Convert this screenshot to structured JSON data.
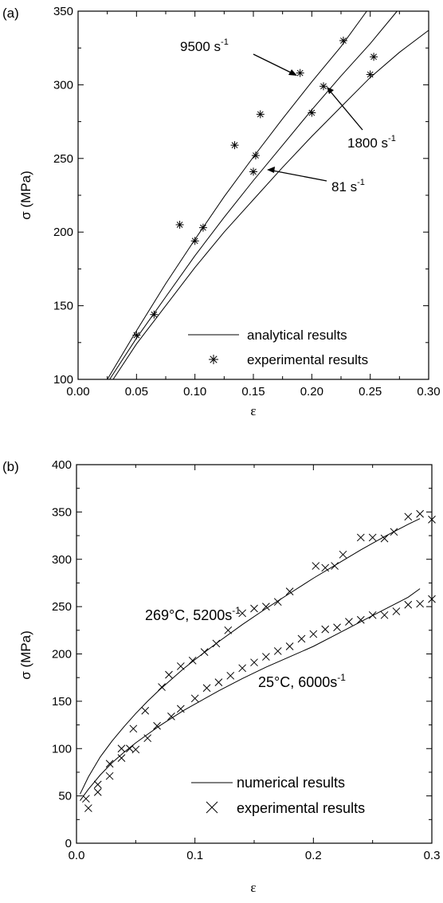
{
  "chart_data": [
    {
      "type": "line",
      "panel_label": "(a)",
      "xlabel": "ε",
      "ylabel": "σ (MPa)",
      "xlim": [
        0.0,
        0.3
      ],
      "ylim": [
        100,
        350
      ],
      "xticks": [
        "0.00",
        "0.05",
        "0.10",
        "0.15",
        "0.20",
        "0.25",
        "0.30"
      ],
      "yticks": [
        "100",
        "150",
        "200",
        "250",
        "300",
        "350"
      ],
      "grid": false,
      "legend_position": "bottom-right",
      "legend": [
        {
          "label": "analytical results",
          "marker": "line"
        },
        {
          "label": "experimental results",
          "marker": "asterisk"
        }
      ],
      "series": [
        {
          "name": "9500 s-1",
          "curve": [
            [
              0.025,
              100
            ],
            [
              0.05,
              133
            ],
            [
              0.075,
              165
            ],
            [
              0.1,
              195
            ],
            [
              0.125,
              224
            ],
            [
              0.15,
              251
            ],
            [
              0.175,
              277
            ],
            [
              0.2,
              302
            ],
            [
              0.225,
              326
            ],
            [
              0.247,
              350
            ]
          ],
          "points": [
            [
              0.087,
              205
            ],
            [
              0.134,
              259
            ],
            [
              0.156,
              280
            ],
            [
              0.19,
              308
            ],
            [
              0.227,
              330
            ]
          ]
        },
        {
          "name": "1800 s-1",
          "curve": [
            [
              0.027,
              100
            ],
            [
              0.05,
              128
            ],
            [
              0.075,
              156
            ],
            [
              0.1,
              184
            ],
            [
              0.125,
              210
            ],
            [
              0.15,
              235
            ],
            [
              0.175,
              259
            ],
            [
              0.2,
              283
            ],
            [
              0.225,
              306
            ],
            [
              0.25,
              328
            ],
            [
              0.273,
              350
            ]
          ],
          "points": [
            [
              0.05,
              130
            ],
            [
              0.065,
              144
            ],
            [
              0.107,
              203
            ],
            [
              0.152,
              252
            ],
            [
              0.21,
              299
            ],
            [
              0.253,
              319
            ]
          ]
        },
        {
          "name": "81 s-1",
          "curve": [
            [
              0.03,
              100
            ],
            [
              0.05,
              124
            ],
            [
              0.075,
              150
            ],
            [
              0.1,
              176
            ],
            [
              0.125,
              200
            ],
            [
              0.15,
              222
            ],
            [
              0.175,
              244
            ],
            [
              0.2,
              265
            ],
            [
              0.225,
              285
            ],
            [
              0.25,
              305
            ],
            [
              0.275,
              322
            ],
            [
              0.3,
              337
            ]
          ],
          "points": [
            [
              0.1,
              194
            ],
            [
              0.15,
              241
            ],
            [
              0.2,
              281
            ],
            [
              0.25,
              307
            ]
          ]
        }
      ],
      "annotations": [
        {
          "text": "9500 s",
          "superscript": "-1"
        },
        {
          "text": "1800 s",
          "superscript": "-1"
        },
        {
          "text": "81 s",
          "superscript": "-1"
        }
      ]
    },
    {
      "type": "line",
      "panel_label": "(b)",
      "xlabel": "ε",
      "ylabel": "σ (MPa)",
      "xlim": [
        0.0,
        0.3
      ],
      "ylim": [
        0,
        400
      ],
      "xticks": [
        "0.0",
        "0.1",
        "0.2",
        "0.3"
      ],
      "yticks": [
        "0",
        "50",
        "100",
        "150",
        "200",
        "250",
        "300",
        "350",
        "400"
      ],
      "grid": false,
      "legend_position": "bottom-right",
      "legend": [
        {
          "label": "numerical results",
          "marker": "line"
        },
        {
          "label": "experimental results",
          "marker": "cross"
        }
      ],
      "series": [
        {
          "name": "269°C, 5200s-1",
          "curve": [
            [
              0.003,
              52
            ],
            [
              0.01,
              70
            ],
            [
              0.02,
              91
            ],
            [
              0.03,
              108
            ],
            [
              0.04,
              123
            ],
            [
              0.05,
              137
            ],
            [
              0.06,
              150
            ],
            [
              0.07,
              162
            ],
            [
              0.08,
              173
            ],
            [
              0.09,
              184
            ],
            [
              0.1,
              194
            ],
            [
              0.12,
              213
            ],
            [
              0.14,
              231
            ],
            [
              0.16,
              248
            ],
            [
              0.18,
              264
            ],
            [
              0.2,
              280
            ],
            [
              0.22,
              295
            ],
            [
              0.24,
              310
            ],
            [
              0.26,
              324
            ],
            [
              0.28,
              337
            ],
            [
              0.29,
              343
            ]
          ],
          "points": [
            [
              0.008,
              47
            ],
            [
              0.018,
              62
            ],
            [
              0.028,
              84
            ],
            [
              0.038,
              100
            ],
            [
              0.048,
              121
            ],
            [
              0.058,
              140
            ],
            [
              0.072,
              165
            ],
            [
              0.078,
              178
            ],
            [
              0.088,
              187
            ],
            [
              0.098,
              193
            ],
            [
              0.108,
              202
            ],
            [
              0.118,
              211
            ],
            [
              0.128,
              225
            ],
            [
              0.14,
              243
            ],
            [
              0.15,
              248
            ],
            [
              0.16,
              250
            ],
            [
              0.17,
              255
            ],
            [
              0.18,
              266
            ],
            [
              0.202,
              293
            ],
            [
              0.21,
              291
            ],
            [
              0.218,
              293
            ],
            [
              0.225,
              305
            ],
            [
              0.24,
              323
            ],
            [
              0.25,
              323
            ],
            [
              0.26,
              322
            ],
            [
              0.268,
              329
            ],
            [
              0.28,
              345
            ],
            [
              0.29,
              348
            ],
            [
              0.3,
              342
            ]
          ]
        },
        {
          "name": "25°C, 6000s-1",
          "curve": [
            [
              0.003,
              45
            ],
            [
              0.01,
              57
            ],
            [
              0.02,
              72
            ],
            [
              0.03,
              85
            ],
            [
              0.04,
              96
            ],
            [
              0.05,
              106
            ],
            [
              0.06,
              115
            ],
            [
              0.07,
              124
            ],
            [
              0.08,
              132
            ],
            [
              0.09,
              140
            ],
            [
              0.1,
              147
            ],
            [
              0.12,
              161
            ],
            [
              0.14,
              174
            ],
            [
              0.16,
              186
            ],
            [
              0.18,
              197
            ],
            [
              0.2,
              208
            ],
            [
              0.22,
              221
            ],
            [
              0.24,
              234
            ],
            [
              0.26,
              247
            ],
            [
              0.28,
              260
            ],
            [
              0.29,
              269
            ]
          ],
          "points": [
            [
              0.01,
              37
            ],
            [
              0.018,
              54
            ],
            [
              0.028,
              71
            ],
            [
              0.038,
              90
            ],
            [
              0.045,
              100
            ],
            [
              0.05,
              99
            ],
            [
              0.06,
              111
            ],
            [
              0.068,
              124
            ],
            [
              0.08,
              134
            ],
            [
              0.088,
              142
            ],
            [
              0.1,
              153
            ],
            [
              0.11,
              164
            ],
            [
              0.12,
              170
            ],
            [
              0.13,
              177
            ],
            [
              0.14,
              185
            ],
            [
              0.15,
              191
            ],
            [
              0.16,
              197
            ],
            [
              0.17,
              203
            ],
            [
              0.18,
              208
            ],
            [
              0.19,
              216
            ],
            [
              0.2,
              221
            ],
            [
              0.21,
              226
            ],
            [
              0.22,
              228
            ],
            [
              0.23,
              234
            ],
            [
              0.24,
              236
            ],
            [
              0.25,
              241
            ],
            [
              0.26,
              241
            ],
            [
              0.27,
              245
            ],
            [
              0.28,
              252
            ],
            [
              0.29,
              253
            ],
            [
              0.3,
              258
            ]
          ]
        }
      ],
      "annotations": [
        {
          "text": "269°C, 5200s",
          "superscript": "-1"
        },
        {
          "text": "25°C, 6000s",
          "superscript": "-1"
        }
      ]
    }
  ]
}
